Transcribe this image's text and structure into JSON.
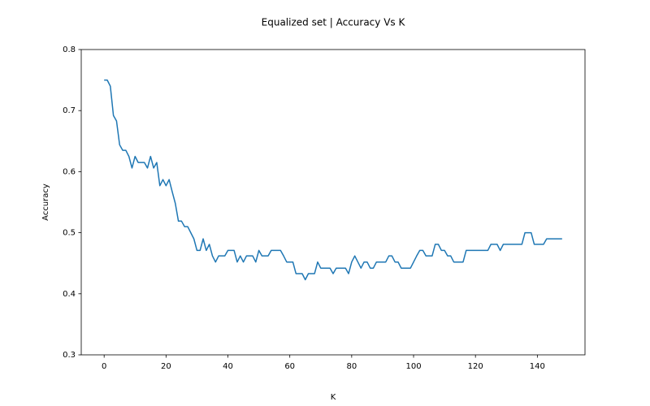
{
  "chart_data": {
    "type": "line",
    "title": "Equalized set | Accuracy Vs K",
    "x_label": "K",
    "y_label": "Accuracy",
    "x": [
      0,
      1,
      2,
      3,
      4,
      5,
      6,
      7,
      8,
      9,
      10,
      11,
      12,
      13,
      14,
      15,
      16,
      17,
      18,
      19,
      20,
      21,
      22,
      23,
      24,
      25,
      26,
      27,
      28,
      29,
      30,
      31,
      32,
      33,
      34,
      35,
      36,
      37,
      38,
      39,
      40,
      41,
      42,
      43,
      44,
      45,
      46,
      47,
      48,
      49,
      50,
      51,
      52,
      53,
      54,
      55,
      56,
      57,
      58,
      59,
      60,
      61,
      62,
      63,
      64,
      65,
      66,
      67,
      68,
      69,
      70,
      71,
      72,
      73,
      74,
      75,
      76,
      77,
      78,
      79,
      80,
      81,
      82,
      83,
      84,
      85,
      86,
      87,
      88,
      89,
      90,
      91,
      92,
      93,
      94,
      95,
      96,
      97,
      98,
      99,
      100,
      101,
      102,
      103,
      104,
      105,
      106,
      107,
      108,
      109,
      110,
      111,
      112,
      113,
      114,
      115,
      116,
      117,
      118,
      119,
      120,
      121,
      122,
      123,
      124,
      125,
      126,
      127,
      128,
      129,
      130,
      131,
      132,
      133,
      134,
      135,
      136,
      137,
      138,
      139,
      140,
      141,
      142,
      143,
      144,
      145,
      146,
      147,
      148
    ],
    "series": [
      {
        "color": "#1f77b4",
        "values": [
          0.75,
          0.75,
          0.74,
          0.692,
          0.683,
          0.644,
          0.635,
          0.635,
          0.625,
          0.606,
          0.625,
          0.615,
          0.615,
          0.615,
          0.606,
          0.625,
          0.606,
          0.615,
          0.577,
          0.587,
          0.577,
          0.587,
          0.567,
          0.548,
          0.519,
          0.519,
          0.51,
          0.51,
          0.5,
          0.49,
          0.471,
          0.471,
          0.49,
          0.471,
          0.481,
          0.462,
          0.452,
          0.462,
          0.462,
          0.462,
          0.471,
          0.471,
          0.471,
          0.452,
          0.462,
          0.452,
          0.462,
          0.462,
          0.462,
          0.452,
          0.471,
          0.462,
          0.462,
          0.462,
          0.471,
          0.471,
          0.471,
          0.471,
          0.462,
          0.452,
          0.452,
          0.452,
          0.433,
          0.433,
          0.433,
          0.423,
          0.433,
          0.433,
          0.433,
          0.452,
          0.442,
          0.442,
          0.442,
          0.442,
          0.433,
          0.442,
          0.442,
          0.442,
          0.442,
          0.433,
          0.452,
          0.462,
          0.452,
          0.442,
          0.452,
          0.452,
          0.442,
          0.442,
          0.452,
          0.452,
          0.452,
          0.452,
          0.462,
          0.462,
          0.452,
          0.452,
          0.442,
          0.442,
          0.442,
          0.442,
          0.452,
          0.462,
          0.471,
          0.471,
          0.462,
          0.462,
          0.462,
          0.481,
          0.481,
          0.471,
          0.471,
          0.462,
          0.462,
          0.452,
          0.452,
          0.452,
          0.452,
          0.471,
          0.471,
          0.471,
          0.471,
          0.471,
          0.471,
          0.471,
          0.471,
          0.481,
          0.481,
          0.481,
          0.471,
          0.481,
          0.481,
          0.481,
          0.481,
          0.481,
          0.481,
          0.481,
          0.5,
          0.5,
          0.5,
          0.481,
          0.481,
          0.481,
          0.481,
          0.49,
          0.49,
          0.49,
          0.49,
          0.49,
          0.49
        ]
      }
    ],
    "xlim": [
      -7.4,
      155.4
    ],
    "ylim": [
      0.3,
      0.8
    ],
    "xticks": [
      0,
      20,
      40,
      60,
      80,
      100,
      120,
      140
    ],
    "yticks": [
      0.3,
      0.4,
      0.5,
      0.6,
      0.7,
      0.8
    ],
    "grid": false
  }
}
